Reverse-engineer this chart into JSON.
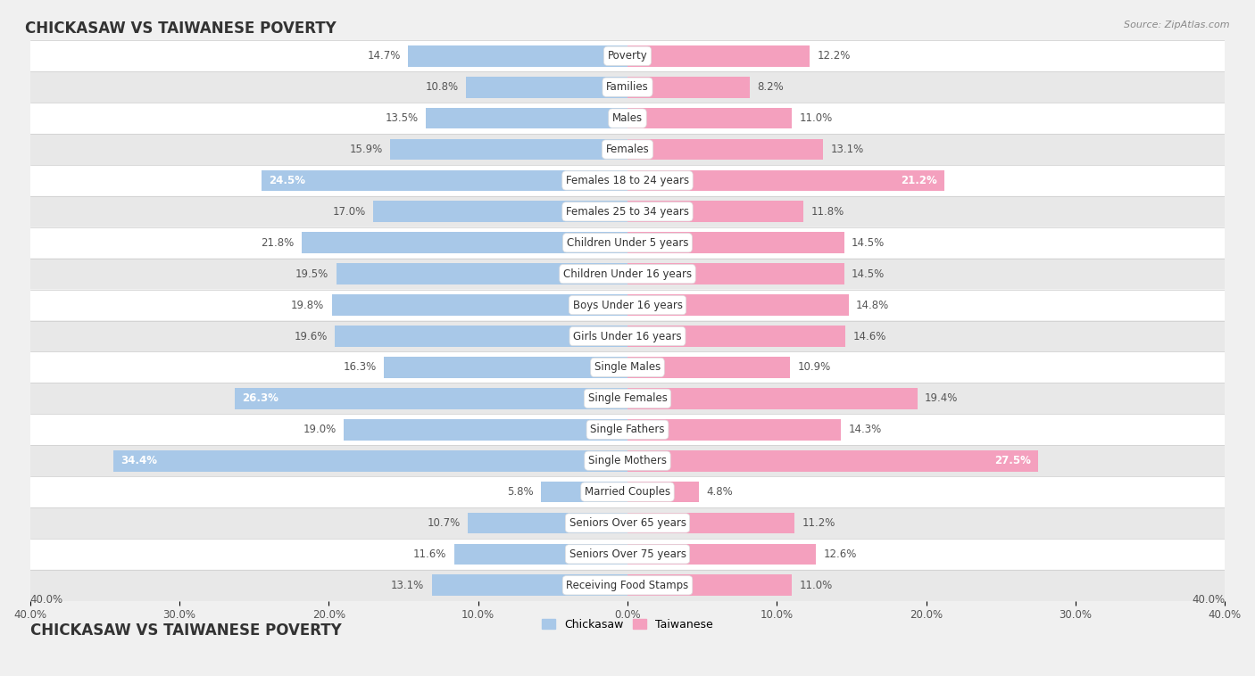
{
  "title": "CHICKASAW VS TAIWANESE POVERTY",
  "source": "Source: ZipAtlas.com",
  "categories": [
    "Poverty",
    "Families",
    "Males",
    "Females",
    "Females 18 to 24 years",
    "Females 25 to 34 years",
    "Children Under 5 years",
    "Children Under 16 years",
    "Boys Under 16 years",
    "Girls Under 16 years",
    "Single Males",
    "Single Females",
    "Single Fathers",
    "Single Mothers",
    "Married Couples",
    "Seniors Over 65 years",
    "Seniors Over 75 years",
    "Receiving Food Stamps"
  ],
  "chickasaw": [
    14.7,
    10.8,
    13.5,
    15.9,
    24.5,
    17.0,
    21.8,
    19.5,
    19.8,
    19.6,
    16.3,
    26.3,
    19.0,
    34.4,
    5.8,
    10.7,
    11.6,
    13.1
  ],
  "taiwanese": [
    12.2,
    8.2,
    11.0,
    13.1,
    21.2,
    11.8,
    14.5,
    14.5,
    14.8,
    14.6,
    10.9,
    19.4,
    14.3,
    27.5,
    4.8,
    11.2,
    12.6,
    11.0
  ],
  "chickasaw_color": "#a8c8e8",
  "taiwanese_color": "#f4a0be",
  "highlight_chickasaw": [
    4,
    11,
    13
  ],
  "highlight_taiwanese": [
    4,
    13
  ],
  "bar_height": 0.68,
  "xlim": 40.0,
  "background_color": "#f0f0f0",
  "row_color_odd": "#ffffff",
  "row_color_even": "#e8e8e8",
  "legend_labels": [
    "Chickasaw",
    "Taiwanese"
  ],
  "label_fontsize": 8.5,
  "category_fontsize": 8.5,
  "title_fontsize": 12
}
